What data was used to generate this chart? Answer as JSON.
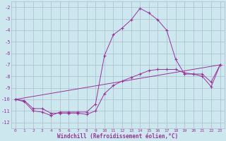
{
  "xlabel": "Windchill (Refroidissement éolien,°C)",
  "background_color": "#cce8ee",
  "grid_color": "#aabbcc",
  "line_color": "#993399",
  "xlim": [
    -0.5,
    23.5
  ],
  "ylim": [
    -12.5,
    -1.5
  ],
  "xticks": [
    0,
    1,
    2,
    3,
    4,
    5,
    6,
    7,
    8,
    9,
    10,
    11,
    12,
    13,
    14,
    15,
    16,
    17,
    18,
    19,
    20,
    21,
    22,
    23
  ],
  "yticks": [
    -2,
    -3,
    -4,
    -5,
    -6,
    -7,
    -8,
    -9,
    -10,
    -11,
    -12
  ],
  "line1_x": [
    0,
    1,
    2,
    3,
    4,
    5,
    6,
    7,
    8,
    9,
    10,
    11,
    12,
    13,
    14,
    15,
    16,
    17,
    18,
    19,
    20,
    21,
    22,
    23
  ],
  "line1_y": [
    -10.0,
    -10.2,
    -11.0,
    -11.1,
    -11.4,
    -11.1,
    -11.1,
    -11.1,
    -11.1,
    -10.4,
    -6.2,
    -4.4,
    -3.8,
    -3.1,
    -2.1,
    -2.5,
    -3.1,
    -4.0,
    -6.5,
    -7.8,
    -7.8,
    -8.0,
    -8.9,
    -7.0
  ],
  "line2_x": [
    0,
    1,
    2,
    3,
    4,
    5,
    6,
    7,
    8,
    9,
    10,
    11,
    12,
    13,
    14,
    15,
    16,
    17,
    18,
    19,
    20,
    21,
    22,
    23
  ],
  "line2_y": [
    -10.0,
    -10.1,
    -10.8,
    -10.8,
    -11.2,
    -11.2,
    -11.2,
    -11.2,
    -11.3,
    -11.0,
    -9.5,
    -8.8,
    -8.4,
    -8.1,
    -7.8,
    -7.5,
    -7.4,
    -7.4,
    -7.4,
    -7.7,
    -7.8,
    -7.8,
    -8.5,
    -7.0
  ],
  "line3_x": [
    0,
    23
  ],
  "line3_y": [
    -10.0,
    -7.0
  ]
}
